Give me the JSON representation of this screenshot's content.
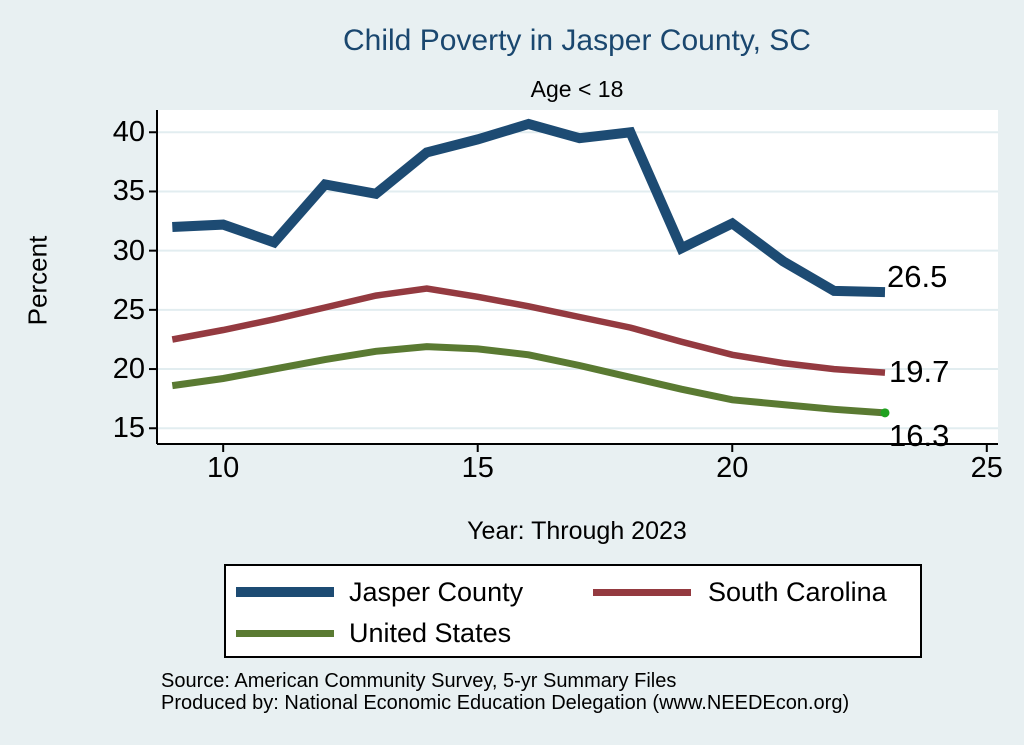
{
  "page": {
    "background": "#e8f0f2"
  },
  "title": {
    "text": "Child Poverty in Jasper County, SC",
    "color": "#1a476f"
  },
  "subtitle": "Age < 18",
  "chart_data": {
    "type": "line",
    "x": [
      9,
      10,
      11,
      12,
      13,
      14,
      15,
      16,
      17,
      18,
      19,
      20,
      21,
      22,
      23
    ],
    "series": [
      {
        "name": "Jasper County",
        "color": "#1d4b73",
        "line_width": 10,
        "values": [
          32.0,
          32.2,
          30.7,
          35.6,
          34.8,
          38.3,
          39.4,
          40.7,
          39.5,
          40.0,
          30.2,
          32.3,
          29.1,
          26.6,
          26.5
        ],
        "end_label": "26.5"
      },
      {
        "name": "South Carolina",
        "color": "#943a40",
        "line_width": 6.5,
        "values": [
          22.5,
          23.3,
          24.2,
          25.2,
          26.2,
          26.8,
          26.1,
          25.3,
          24.4,
          23.5,
          22.3,
          21.2,
          20.5,
          20.0,
          19.7
        ],
        "end_label": "19.7"
      },
      {
        "name": "United States",
        "color": "#5a7a32",
        "line_width": 7,
        "values": [
          18.6,
          19.2,
          20.0,
          20.8,
          21.5,
          21.9,
          21.7,
          21.2,
          20.3,
          19.3,
          18.3,
          17.4,
          17.0,
          16.6,
          16.3
        ],
        "end_label": "16.3",
        "end_marker": true,
        "end_marker_color": "#1fa11f"
      }
    ],
    "title": "Child Poverty in Jasper County, SC",
    "subtitle": "Age < 18",
    "xlabel": "Year: Through 2023",
    "ylabel": "Percent",
    "x_tick_labels": [
      "10",
      "15",
      "20",
      "25"
    ],
    "x_tick_values": [
      10,
      15,
      20,
      25
    ],
    "y_ticks": [
      15,
      20,
      25,
      30,
      35,
      40
    ],
    "x_range": [
      8.7,
      25.22
    ],
    "y_range": [
      13.67,
      41.88
    ],
    "grid": true,
    "grid_color": "#e2edf0",
    "plot_background": "#ffffff",
    "legend_position": "bottom"
  },
  "legend": {
    "items": [
      "Jasper County",
      "South Carolina",
      "United States"
    ]
  },
  "source_lines": [
    "Source: American Community Survey, 5-yr Summary Files",
    "Produced by: National Economic Education Delegation (www.NEEDEcon.org)"
  ]
}
